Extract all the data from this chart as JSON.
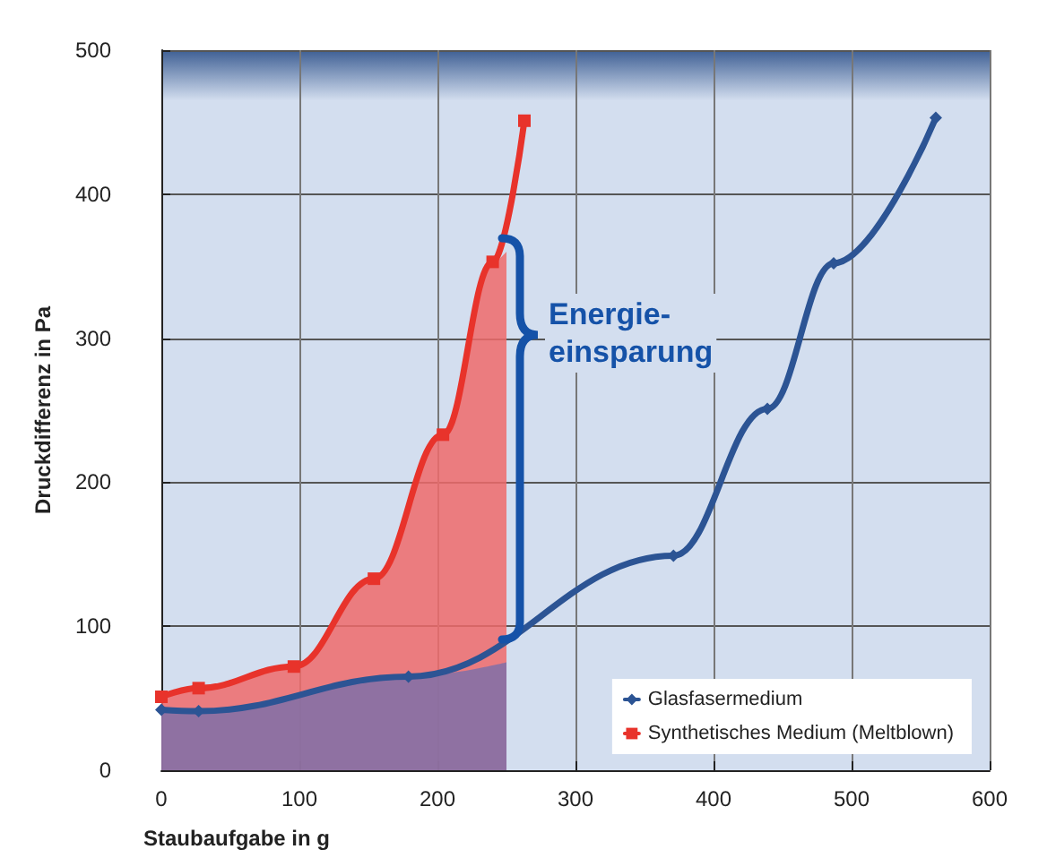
{
  "chart_data": {
    "type": "line",
    "xlabel": "Staubaufgabe in g",
    "ylabel": "Druckdifferenz in Pa",
    "xlim": [
      0,
      600
    ],
    "xticks": [
      0,
      100,
      200,
      300,
      400,
      500,
      600
    ],
    "ylim": [
      0,
      500
    ],
    "yticks": [
      0,
      100,
      200,
      300,
      400,
      500
    ],
    "grid": true,
    "legend": "bottom right",
    "series": [
      {
        "type": "area",
        "color": "#ee6b6b",
        "x": [
          0,
          27,
          96,
          154,
          204,
          240,
          250
        ],
        "values": [
          51,
          57,
          72,
          133,
          233,
          353,
          360
        ]
      },
      {
        "type": "area",
        "color": "#7f70a8",
        "x": [
          0,
          27,
          179,
          250
        ],
        "values": [
          42,
          41,
          65,
          75
        ]
      },
      {
        "name": "Glasfasermedium",
        "color": "#2c5494",
        "marker": "diamond",
        "x": [
          0,
          27,
          179,
          371,
          439,
          487,
          561
        ],
        "values": [
          42,
          41,
          65,
          149,
          251,
          352,
          453
        ]
      },
      {
        "name": "Synthetisches Medium (Meltblown)",
        "color": "#e8332b",
        "marker": "square",
        "x": [
          0,
          27,
          96,
          154,
          204,
          240,
          263
        ],
        "values": [
          51,
          57,
          72,
          133,
          233,
          353,
          451
        ]
      }
    ],
    "annotations": [
      "Energie-\neinsparung"
    ]
  }
}
